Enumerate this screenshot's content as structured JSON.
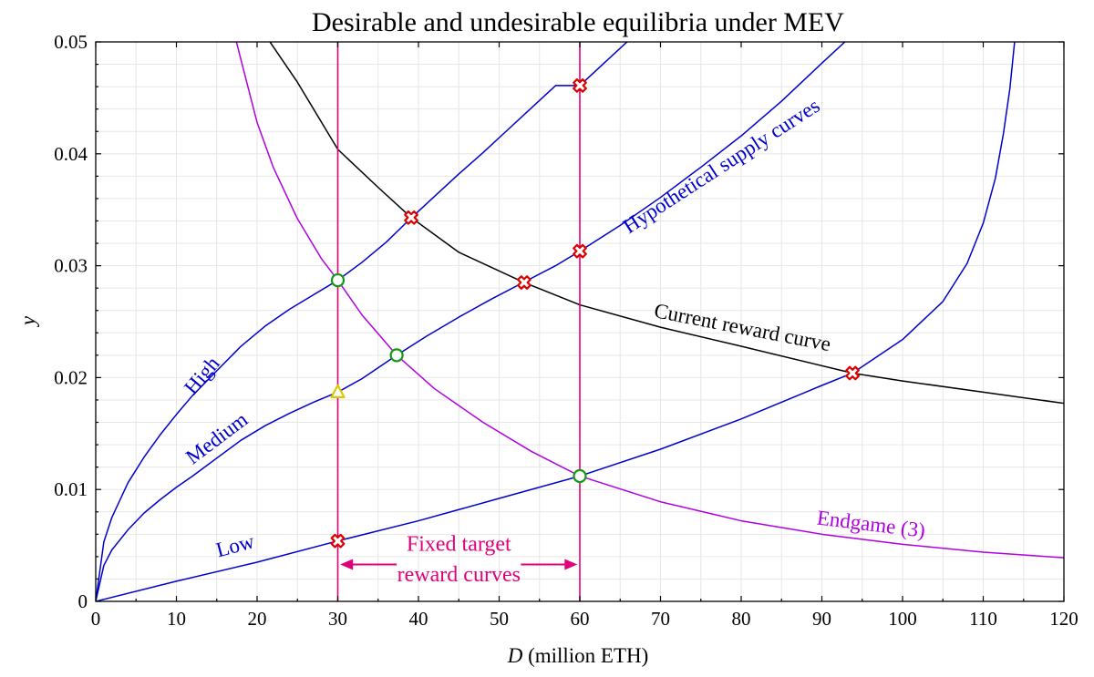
{
  "chart_data": {
    "type": "line",
    "title": "Desirable and undesirable equilibria under MEV",
    "xlabel_italic": "D",
    "xlabel_rest": " (million ETH)",
    "ylabel": "y",
    "xlim": [
      0,
      120
    ],
    "ylim": [
      0,
      0.05
    ],
    "x_ticks": [
      0,
      10,
      20,
      30,
      40,
      50,
      60,
      70,
      80,
      90,
      100,
      110,
      120
    ],
    "x_tick_labels": [
      "0",
      "10",
      "20",
      "30",
      "40",
      "50",
      "60",
      "70",
      "80",
      "90",
      "100",
      "110",
      "120"
    ],
    "y_ticks": [
      0,
      0.01,
      0.02,
      0.03,
      0.04,
      0.05
    ],
    "y_tick_labels": [
      "0",
      "0.01",
      "0.02",
      "0.03",
      "0.04",
      "0.05"
    ],
    "grid": true,
    "series": [
      {
        "name": "High",
        "kind": "supply",
        "color": "#0000cc",
        "points": [
          [
            0,
            0
          ],
          [
            1,
            0.0053
          ],
          [
            2,
            0.0075
          ],
          [
            4,
            0.0106
          ],
          [
            6,
            0.0129
          ],
          [
            8,
            0.0149
          ],
          [
            10,
            0.0167
          ],
          [
            12,
            0.0184
          ],
          [
            15,
            0.0206
          ],
          [
            18,
            0.0228
          ],
          [
            21,
            0.0246
          ],
          [
            24,
            0.0261
          ],
          [
            27,
            0.0274
          ],
          [
            30,
            0.0287
          ],
          [
            33,
            0.0303
          ],
          [
            36,
            0.0321
          ],
          [
            39,
            0.0342
          ],
          [
            42,
            0.0362
          ],
          [
            45,
            0.0382
          ],
          [
            48,
            0.0401
          ],
          [
            51,
            0.0421
          ],
          [
            54,
            0.0441
          ],
          [
            57,
            0.0461
          ],
          [
            60,
            0.0461
          ],
          [
            63,
            0.0481
          ],
          [
            66,
            0.0501
          ]
        ]
      },
      {
        "name": "Medium",
        "kind": "supply",
        "color": "#0000cc",
        "points": [
          [
            0,
            0
          ],
          [
            1,
            0.0032
          ],
          [
            2,
            0.0046
          ],
          [
            4,
            0.0064
          ],
          [
            6,
            0.0079
          ],
          [
            8,
            0.0091
          ],
          [
            10,
            0.0102
          ],
          [
            12,
            0.0112
          ],
          [
            15,
            0.0128
          ],
          [
            18,
            0.0144
          ],
          [
            21,
            0.0157
          ],
          [
            24,
            0.0168
          ],
          [
            27,
            0.0178
          ],
          [
            30,
            0.0187
          ],
          [
            33,
            0.0199
          ],
          [
            37.3,
            0.022
          ],
          [
            41,
            0.0237
          ],
          [
            45,
            0.0254
          ],
          [
            49,
            0.027
          ],
          [
            53,
            0.0285
          ],
          [
            57,
            0.03
          ],
          [
            60,
            0.0313
          ],
          [
            65,
            0.0336
          ],
          [
            70,
            0.0361
          ],
          [
            75,
            0.0388
          ],
          [
            80,
            0.0416
          ],
          [
            85,
            0.0447
          ],
          [
            90,
            0.0481
          ],
          [
            93,
            0.0501
          ]
        ]
      },
      {
        "name": "Low",
        "kind": "supply",
        "color": "#0000cc",
        "points": [
          [
            0,
            0
          ],
          [
            10,
            0.0018
          ],
          [
            20,
            0.0035
          ],
          [
            30,
            0.0054
          ],
          [
            40,
            0.0072
          ],
          [
            50,
            0.0092
          ],
          [
            60,
            0.0112
          ],
          [
            70,
            0.0136
          ],
          [
            80,
            0.0163
          ],
          [
            90,
            0.0193
          ],
          [
            93.8,
            0.0204
          ],
          [
            100,
            0.0234
          ],
          [
            105,
            0.0268
          ],
          [
            108,
            0.0302
          ],
          [
            110,
            0.0338
          ],
          [
            111.5,
            0.0378
          ],
          [
            112.5,
            0.0418
          ],
          [
            113.3,
            0.0458
          ],
          [
            113.9,
            0.0501
          ]
        ]
      },
      {
        "name": "Current reward curve",
        "kind": "reward",
        "color": "#000000",
        "points": [
          [
            21.5,
            0.0501
          ],
          [
            25,
            0.0464
          ],
          [
            30,
            0.0404
          ],
          [
            35,
            0.037
          ],
          [
            39.1,
            0.0343
          ],
          [
            45,
            0.0312
          ],
          [
            53.1,
            0.0285
          ],
          [
            60,
            0.0265
          ],
          [
            70,
            0.0245
          ],
          [
            80,
            0.0228
          ],
          [
            93.8,
            0.0204
          ],
          [
            100,
            0.0197
          ],
          [
            110,
            0.0187
          ],
          [
            120,
            0.0177
          ]
        ]
      },
      {
        "name": "Endgame (3)",
        "kind": "reward",
        "color": "#b000e0",
        "points": [
          [
            17.4,
            0.0501
          ],
          [
            20,
            0.0428
          ],
          [
            22,
            0.0388
          ],
          [
            25,
            0.0342
          ],
          [
            28,
            0.0306
          ],
          [
            30,
            0.0287
          ],
          [
            33,
            0.0256
          ],
          [
            37.3,
            0.022
          ],
          [
            42,
            0.019
          ],
          [
            48,
            0.016
          ],
          [
            54,
            0.0134
          ],
          [
            60,
            0.0112
          ],
          [
            70,
            0.0089
          ],
          [
            80,
            0.0072
          ],
          [
            90,
            0.006
          ],
          [
            100,
            0.0051
          ],
          [
            110,
            0.0044
          ],
          [
            120,
            0.0039
          ]
        ]
      },
      {
        "name": "Fixed target 30",
        "kind": "fixed",
        "color": "#e0007a",
        "points": [
          [
            30,
            0
          ],
          [
            30,
            0.05
          ]
        ]
      },
      {
        "name": "Fixed target 60",
        "kind": "fixed",
        "color": "#e0007a",
        "points": [
          [
            60,
            0
          ],
          [
            60,
            0.05
          ]
        ]
      }
    ],
    "markers": {
      "desirable": [
        [
          30,
          0.0287
        ],
        [
          37.3,
          0.022
        ],
        [
          60,
          0.0112
        ]
      ],
      "undesirable": [
        [
          60,
          0.0461
        ],
        [
          39.1,
          0.0343
        ],
        [
          53.1,
          0.0285
        ],
        [
          60,
          0.0313
        ],
        [
          93.8,
          0.0204
        ],
        [
          30,
          0.0054
        ]
      ],
      "neutral": [
        [
          30,
          0.0187
        ]
      ]
    },
    "annotations": [
      {
        "id": "high",
        "text": "High",
        "x": 13.8,
        "y": 0.0198,
        "angle": -50,
        "color": "#0000cc",
        "size": 23
      },
      {
        "id": "medium",
        "text": "Medium",
        "x": 15.5,
        "y": 0.0141,
        "angle": -37,
        "color": "#0000cc",
        "size": 23
      },
      {
        "id": "low",
        "text": "Low",
        "x": 17.5,
        "y": 0.0044,
        "angle": -15,
        "color": "#0000cc",
        "size": 23
      },
      {
        "id": "supply",
        "text": "Hypothetical supply curves",
        "x": 78,
        "y": 0.0384,
        "angle": -33,
        "color": "#0000cc",
        "size": 23
      },
      {
        "id": "current",
        "text": "Current reward curve",
        "x": 80,
        "y": 0.0239,
        "angle": 11,
        "color": "#000000",
        "size": 23
      },
      {
        "id": "endgame",
        "text": "Endgame (3)",
        "x": 96,
        "y": 0.0063,
        "angle": 7,
        "color": "#b000e0",
        "size": 23
      },
      {
        "id": "fixed1",
        "text": "Fixed target",
        "x": 45,
        "y": 0.0045,
        "angle": 0,
        "color": "#e0007a",
        "size": 24
      },
      {
        "id": "fixed2",
        "text": "reward curves",
        "x": 45,
        "y": 0.0018,
        "angle": 0,
        "color": "#e0007a",
        "size": 24
      }
    ],
    "arrows": {
      "y": 0.0033,
      "x1": 30.3,
      "x2": 59.7,
      "left_end": 37.3,
      "right_end": 52.7,
      "color": "#e0007a"
    }
  }
}
